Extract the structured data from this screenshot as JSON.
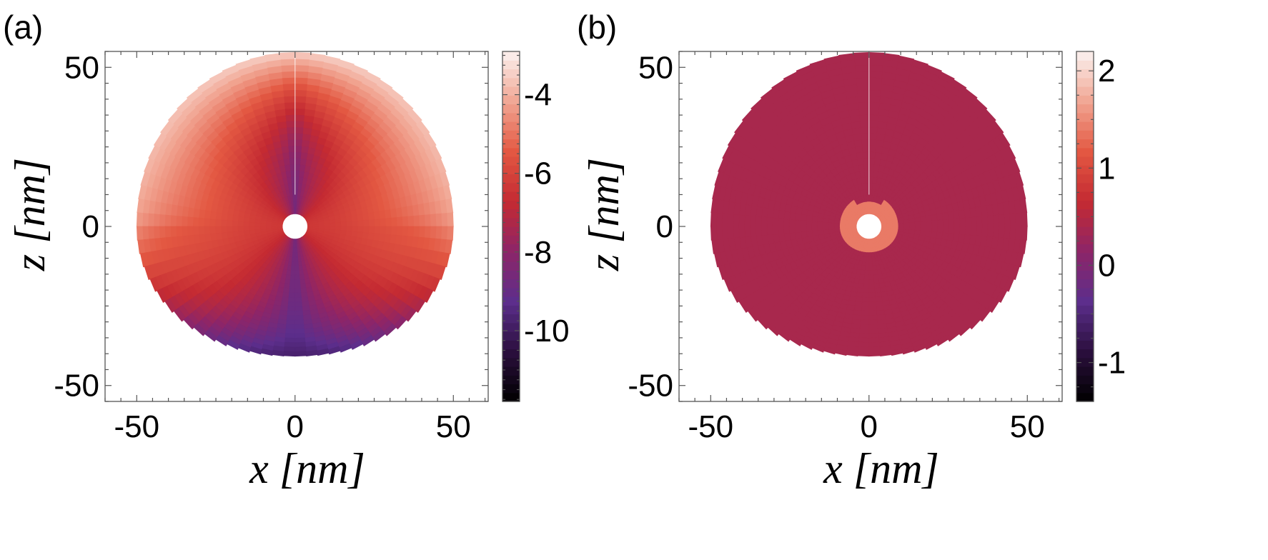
{
  "chart_data": [
    {
      "type": "heatmap",
      "panel_label": "(a)",
      "xlabel": "x [nm]",
      "ylabel": "z [nm]",
      "xlim": [
        -60,
        61
      ],
      "ylim": [
        -55,
        55
      ],
      "xticks": [
        {
          "value": -50,
          "label": "-50"
        },
        {
          "value": 0,
          "label": "0"
        },
        {
          "value": 50,
          "label": "50"
        }
      ],
      "yticks": [
        {
          "value": 50,
          "label": "50"
        },
        {
          "value": 0,
          "label": "0"
        },
        {
          "value": -50,
          "label": "-50"
        }
      ],
      "grid": false,
      "shape": {
        "outer_radius_top": 55,
        "outer_radius_side": 50,
        "outer_radius_bottom": 41,
        "hole_radius": 4
      },
      "colorbar": {
        "range": [
          -11.8,
          -2.9
        ],
        "ticks": [
          {
            "value": -4,
            "label": "-4"
          },
          {
            "value": -6,
            "label": "-6"
          },
          {
            "value": -8,
            "label": "-8"
          },
          {
            "value": -10,
            "label": "-10"
          }
        ],
        "colors": [
          "#000000",
          "#2b0f3d",
          "#5c2e8c",
          "#8d2568",
          "#c42a32",
          "#e35842",
          "#f1a592",
          "#fbf2f0"
        ]
      },
      "field_summary": {
        "rim_top_value": -3.2,
        "outer_side_value": -4.7,
        "inner_lobe_value": -6.4,
        "bottom_rim_value": -9.8,
        "axis_near_hole_value": -9.0
      }
    },
    {
      "type": "heatmap",
      "panel_label": "(b)",
      "xlabel": "x [nm]",
      "ylabel": "z [nm]",
      "xlim": [
        -60,
        61
      ],
      "ylim": [
        -55,
        55
      ],
      "xticks": [
        {
          "value": -50,
          "label": "-50"
        },
        {
          "value": 0,
          "label": "0"
        },
        {
          "value": 50,
          "label": "50"
        }
      ],
      "yticks": [
        {
          "value": 50,
          "label": "50"
        },
        {
          "value": 0,
          "label": "0"
        },
        {
          "value": -50,
          "label": "-50"
        }
      ],
      "grid": false,
      "shape": {
        "outer_radius_top": 55,
        "outer_radius_side": 50,
        "outer_radius_bottom": 41,
        "hole_radius": 4
      },
      "colorbar": {
        "range": [
          -1.4,
          2.2
        ],
        "ticks": [
          {
            "value": 2,
            "label": "2"
          },
          {
            "value": 1,
            "label": "1"
          },
          {
            "value": 0,
            "label": "0"
          },
          {
            "value": -1,
            "label": "-1"
          }
        ],
        "colors": [
          "#000000",
          "#2b0f3d",
          "#5c2e8c",
          "#8d2568",
          "#c42a32",
          "#e35842",
          "#f1a592",
          "#fbf2f0"
        ]
      },
      "field_summary": {
        "uniform_value": 0.4,
        "near_hole_value": 1.4
      }
    }
  ]
}
